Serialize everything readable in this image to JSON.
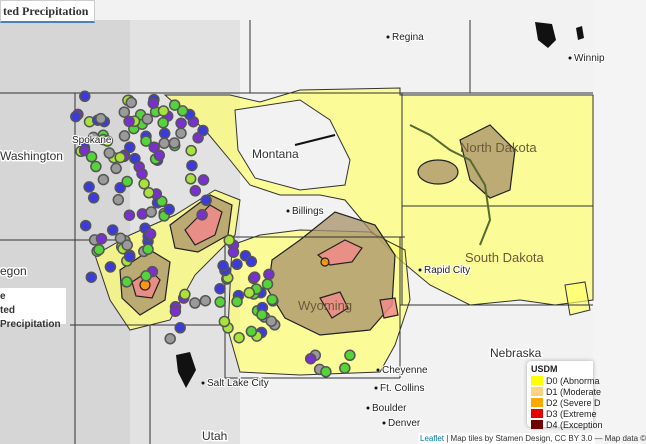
{
  "tab": {
    "title": "ted Precipitation"
  },
  "panel": {
    "line1": "e",
    "line2": "ted Precipitation"
  },
  "places": {
    "regina": "Regina",
    "winnipeg": "Winnip",
    "washington": "Washington",
    "spokane": "Spokane",
    "montana": "Montana",
    "billings": "Billings",
    "north_dakota": "North Dakota",
    "south_dakota": "South Dakota",
    "rapid_city": "Rapid City",
    "wyoming": "Wyoming",
    "nebraska": "Nebraska",
    "cheyenne": "Cheyenne",
    "ft_collins": "Ft. Collins",
    "boulder": "Boulder",
    "denver": "Denver",
    "salt_lake_city": "Salt Lake City",
    "utah": "Utah",
    "oregon": "egon"
  },
  "legend": {
    "title": "USDM",
    "items": [
      {
        "label": "D0 (Abnorma",
        "color": "#ffff00"
      },
      {
        "label": "D1 (Moderate",
        "color": "#fcd37f"
      },
      {
        "label": "D2 (Severe D",
        "color": "#ffaa00"
      },
      {
        "label": "D3 (Extreme",
        "color": "#e60000"
      },
      {
        "label": "D4 (Exception",
        "color": "#730000"
      }
    ]
  },
  "attribution": {
    "leaflet": "Leaflet",
    "rest": " | Map tiles by Stamen Design, CC BY 3.0 — Map data ©"
  }
}
